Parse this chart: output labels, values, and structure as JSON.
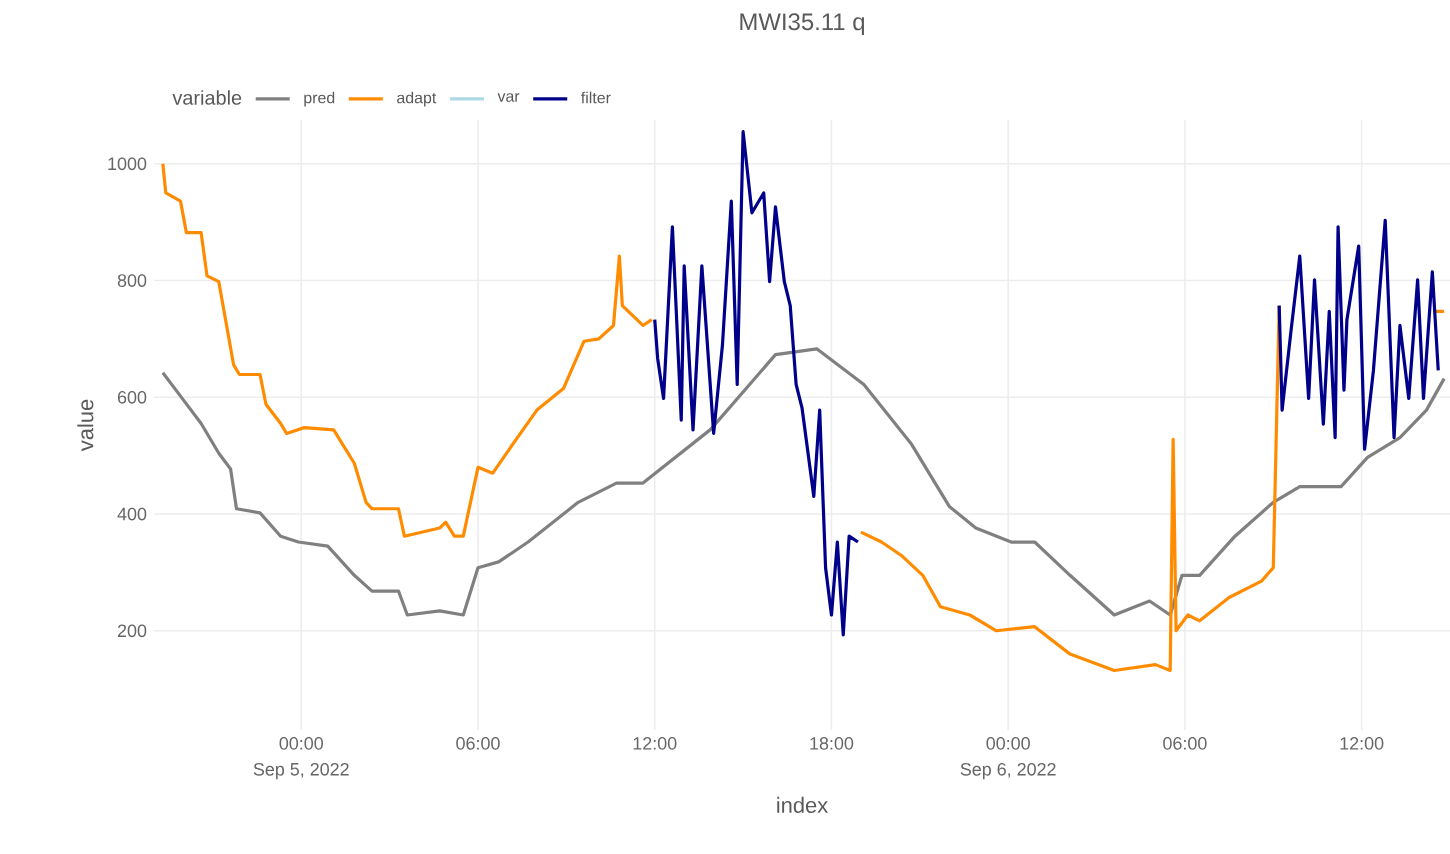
{
  "chart_data": {
    "type": "line",
    "title": "MWI35.11 q",
    "xlabel": "index",
    "ylabel": "value",
    "legend_title": "variable",
    "xlim": [
      "2022-09-04T19:00",
      "2022-09-06T15:00"
    ],
    "ylim": [
      30,
      1075
    ],
    "xticks": [
      {
        "value": "2022-09-05T00:00",
        "label": "00:00\nSep 5, 2022"
      },
      {
        "value": "2022-09-05T06:00",
        "label": "06:00"
      },
      {
        "value": "2022-09-05T12:00",
        "label": "12:00"
      },
      {
        "value": "2022-09-05T18:00",
        "label": "18:00"
      },
      {
        "value": "2022-09-06T00:00",
        "label": "00:00\nSep 6, 2022"
      },
      {
        "value": "2022-09-06T06:00",
        "label": "06:00"
      },
      {
        "value": "2022-09-06T12:00",
        "label": "12:00"
      }
    ],
    "yticks": [
      200,
      400,
      600,
      800,
      1000
    ],
    "grid": true,
    "legend": "top left",
    "line_style": "solid",
    "marker": "none",
    "series": [
      {
        "name": "pred",
        "color": "#808080",
        "x": [
          "2022-09-04T19:18",
          "2022-09-04T19:54",
          "2022-09-04T20:36",
          "2022-09-04T21:12",
          "2022-09-04T21:36",
          "2022-09-04T21:48",
          "2022-09-04T22:36",
          "2022-09-04T23:18",
          "2022-09-04T23:54",
          "2022-09-05T00:54",
          "2022-09-05T01:48",
          "2022-09-05T02:24",
          "2022-09-05T03:18",
          "2022-09-05T03:36",
          "2022-09-05T04:42",
          "2022-09-05T05:30",
          "2022-09-05T06:00",
          "2022-09-05T06:42",
          "2022-09-05T07:42",
          "2022-09-05T09:24",
          "2022-09-05T10:42",
          "2022-09-05T11:36",
          "2022-09-05T13:54",
          "2022-09-05T16:06",
          "2022-09-05T17:30",
          "2022-09-05T19:06",
          "2022-09-05T20:42",
          "2022-09-05T22:00",
          "2022-09-05T22:54",
          "2022-09-06T00:06",
          "2022-09-06T00:54",
          "2022-09-06T02:06",
          "2022-09-06T03:36",
          "2022-09-06T04:48",
          "2022-09-06T05:30",
          "2022-09-06T05:54",
          "2022-09-06T06:30",
          "2022-09-06T07:42",
          "2022-09-06T09:00",
          "2022-09-06T09:54",
          "2022-09-06T11:18",
          "2022-09-06T12:12",
          "2022-09-06T13:18",
          "2022-09-06T14:12",
          "2022-09-06T14:48"
        ],
        "values": [
          642,
          602,
          555,
          504,
          477,
          409,
          402,
          362,
          352,
          345,
          295,
          268,
          268,
          227,
          234,
          227,
          308,
          318,
          352,
          420,
          453,
          453,
          545,
          673,
          683,
          622,
          521,
          413,
          376,
          352,
          352,
          295,
          227,
          251,
          227,
          295,
          295,
          362,
          420,
          447,
          447,
          497,
          531,
          578,
          632
        ]
      },
      {
        "name": "adapt",
        "color": "#ff8c00",
        "x": [
          "2022-09-04T19:18",
          "2022-09-04T19:24",
          "2022-09-04T19:54",
          "2022-09-04T20:06",
          "2022-09-04T20:36",
          "2022-09-04T20:48",
          "2022-09-04T21:12",
          "2022-09-04T21:42",
          "2022-09-04T21:54",
          "2022-09-04T22:36",
          "2022-09-04T22:48",
          "2022-09-04T23:18",
          "2022-09-04T23:30",
          "2022-09-05T00:06",
          "2022-09-05T01:06",
          "2022-09-05T01:48",
          "2022-09-05T02:12",
          "2022-09-05T02:24",
          "2022-09-05T03:18",
          "2022-09-05T03:30",
          "2022-09-05T04:42",
          "2022-09-05T04:54",
          "2022-09-05T05:12",
          "2022-09-05T05:30",
          "2022-09-05T06:00",
          "2022-09-05T06:30",
          "2022-09-05T07:12",
          "2022-09-05T08:00",
          "2022-09-05T08:54",
          "2022-09-05T09:36",
          "2022-09-05T10:06",
          "2022-09-05T10:36",
          "2022-09-05T10:48",
          "2022-09-05T10:54",
          "2022-09-05T11:36",
          "2022-09-05T11:54",
          "2022-09-05T12:00",
          "2022-09-05T19:00",
          "2022-09-05T19:42",
          "2022-09-05T20:24",
          "2022-09-05T21:06",
          "2022-09-05T21:42",
          "2022-09-05T22:42",
          "2022-09-05T23:36",
          "2022-09-06T00:54",
          "2022-09-06T02:06",
          "2022-09-06T03:36",
          "2022-09-06T05:00",
          "2022-09-06T05:30",
          "2022-09-06T05:36",
          "2022-09-06T05:42",
          "2022-09-06T06:06",
          "2022-09-06T06:30",
          "2022-09-06T07:30",
          "2022-09-06T08:36",
          "2022-09-06T09:00",
          "2022-09-06T09:12",
          "2022-09-06T09:18",
          "2022-09-06T14:30",
          "2022-09-06T14:48"
        ],
        "values": [
          1000,
          950,
          936,
          882,
          882,
          808,
          798,
          656,
          639,
          639,
          588,
          555,
          538,
          548,
          544,
          487,
          420,
          409,
          409,
          362,
          376,
          386,
          362,
          362,
          480,
          470,
          521,
          578,
          615,
          696,
          700,
          723,
          842,
          757,
          723,
          733,
          null,
          369,
          352,
          328,
          295,
          241,
          227,
          200,
          207,
          160,
          132,
          142,
          132,
          528,
          200,
          227,
          217,
          257,
          285,
          308,
          757,
          null,
          747,
          747
        ]
      },
      {
        "name": "var",
        "color": "#add8e6"
      },
      {
        "name": "filter",
        "color": "#00008b",
        "x": [
          "2022-09-05T12:00",
          "2022-09-05T12:06",
          "2022-09-05T12:18",
          "2022-09-05T12:36",
          "2022-09-05T12:54",
          "2022-09-05T13:00",
          "2022-09-05T13:18",
          "2022-09-05T13:36",
          "2022-09-05T14:00",
          "2022-09-05T14:18",
          "2022-09-05T14:36",
          "2022-09-05T14:48",
          "2022-09-05T15:00",
          "2022-09-05T15:18",
          "2022-09-05T15:42",
          "2022-09-05T15:54",
          "2022-09-05T16:06",
          "2022-09-05T16:24",
          "2022-09-05T16:36",
          "2022-09-05T16:48",
          "2022-09-05T17:00",
          "2022-09-05T17:24",
          "2022-09-05T17:36",
          "2022-09-05T17:48",
          "2022-09-05T18:00",
          "2022-09-05T18:12",
          "2022-09-05T18:24",
          "2022-09-05T18:36",
          "2022-09-05T18:54",
          "2022-09-06T02:00",
          "2022-09-06T09:12",
          "2022-09-06T09:18",
          "2022-09-06T09:36",
          "2022-09-06T09:54",
          "2022-09-06T10:12",
          "2022-09-06T10:24",
          "2022-09-06T10:42",
          "2022-09-06T10:54",
          "2022-09-06T11:06",
          "2022-09-06T11:12",
          "2022-09-06T11:24",
          "2022-09-06T11:30",
          "2022-09-06T11:54",
          "2022-09-06T12:06",
          "2022-09-06T12:24",
          "2022-09-06T12:48",
          "2022-09-06T13:06",
          "2022-09-06T13:18",
          "2022-09-06T13:36",
          "2022-09-06T13:54",
          "2022-09-06T14:06",
          "2022-09-06T14:24",
          "2022-09-06T14:36"
        ],
        "values": [
          733,
          666,
          598,
          892,
          561,
          825,
          544,
          825,
          538,
          690,
          936,
          622,
          1055,
          916,
          950,
          798,
          926,
          798,
          757,
          622,
          582,
          430,
          578,
          308,
          227,
          352,
          193,
          362,
          352,
          null,
          757,
          578,
          713,
          842,
          598,
          801,
          554,
          747,
          531,
          892,
          612,
          733,
          859,
          511,
          646,
          903,
          531,
          723,
          598,
          801,
          598,
          815,
          646
        ]
      }
    ]
  }
}
